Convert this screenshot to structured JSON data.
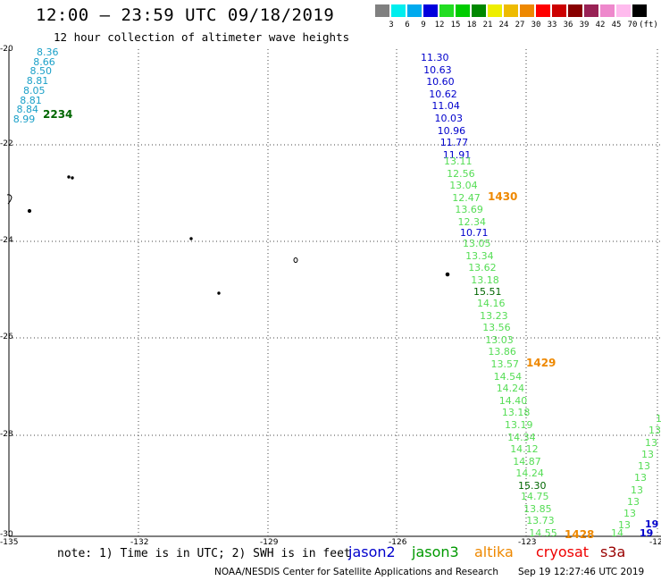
{
  "title": "12:00 – 23:59 UTC 09/18/2019",
  "subtitle": "12 hour collection of altimeter wave heights",
  "legend": {
    "labels": [
      "3",
      "6",
      "9",
      "12",
      "15",
      "18",
      "21",
      "24",
      "27",
      "30",
      "33",
      "36",
      "39",
      "42",
      "45",
      "70"
    ],
    "unit": "(ft)",
    "colors": [
      "#808080",
      "#00eeee",
      "#00aaee",
      "#0000dd",
      "#22dd22",
      "#00cc00",
      "#008800",
      "#eeee00",
      "#eebb00",
      "#ee8800",
      "#ff0000",
      "#cc0000",
      "#880000",
      "#992255",
      "#ee88cc",
      "#ffbbee",
      "#000000"
    ]
  },
  "axes": {
    "lat_labels": [
      "-20",
      "-22",
      "-24",
      "-26",
      "-28",
      "-30"
    ],
    "lon_labels": [
      "-135",
      "-132",
      "-129",
      "-126",
      "-123",
      "-12"
    ]
  },
  "tracks": {
    "cyan": {
      "color": "#1aa0c8",
      "values": [
        "8.36",
        "8.66",
        "8.50",
        "8.81",
        "8.05",
        "8.81",
        "8.84",
        "8.99"
      ]
    },
    "blue": {
      "color": "#0000cc",
      "values": [
        "11.30",
        "10.63",
        "10.60",
        "10.62",
        "11.04",
        "10.03",
        "10.96",
        "11.77",
        "11.91"
      ]
    },
    "green_a": {
      "color": "#55dd55",
      "values": [
        "13.11",
        "12.56",
        "13.04",
        "12.47",
        "13.69",
        "12.34"
      ]
    },
    "blue_b": {
      "color": "#0000cc",
      "values": [
        "10.71"
      ]
    },
    "green_b": {
      "color": "#55dd55",
      "values": [
        "13.05",
        "13.34",
        "13.62",
        "13.18"
      ]
    },
    "dark_a": {
      "color": "#006600",
      "values": [
        "15.51"
      ]
    },
    "green_c": {
      "color": "#55dd55",
      "values": [
        "14.16",
        "13.23",
        "13.56",
        "13.03",
        "13.86",
        "13.57",
        "14.54",
        "14.24",
        "14.40",
        "13.18",
        "13.19",
        "14.34",
        "14.12",
        "14.87",
        "14.24"
      ]
    },
    "dark_b": {
      "color": "#006600",
      "values": [
        "15.30"
      ]
    },
    "green_d": {
      "color": "#55dd55",
      "values": [
        "14.75",
        "13.85",
        "13.73",
        "14.55"
      ]
    }
  },
  "times": {
    "t2234": {
      "text": "2234",
      "color": "#006600"
    },
    "t1430": {
      "text": "1430",
      "color": "#ee8800"
    },
    "t1429": {
      "text": "1429",
      "color": "#ee8800"
    },
    "t1428": {
      "text": "1428",
      "color": "#ee8800"
    }
  },
  "note": "note: 1) Time is in UTC; 2) SWH is in feet",
  "satellites": [
    {
      "name": "jason2",
      "color": "#0000cc"
    },
    {
      "name": "jason3",
      "color": "#009900"
    },
    {
      "name": "altika",
      "color": "#ee8800"
    },
    {
      "name": "cryosat",
      "color": "#ee0000"
    },
    {
      "name": "s3a",
      "color": "#990000"
    }
  ],
  "credit": "NOAA/NESDIS Center for Satellite Applications and Research",
  "stamp": "Sep 19 12:27:46 UTC 2019",
  "edge_blue": "19"
}
